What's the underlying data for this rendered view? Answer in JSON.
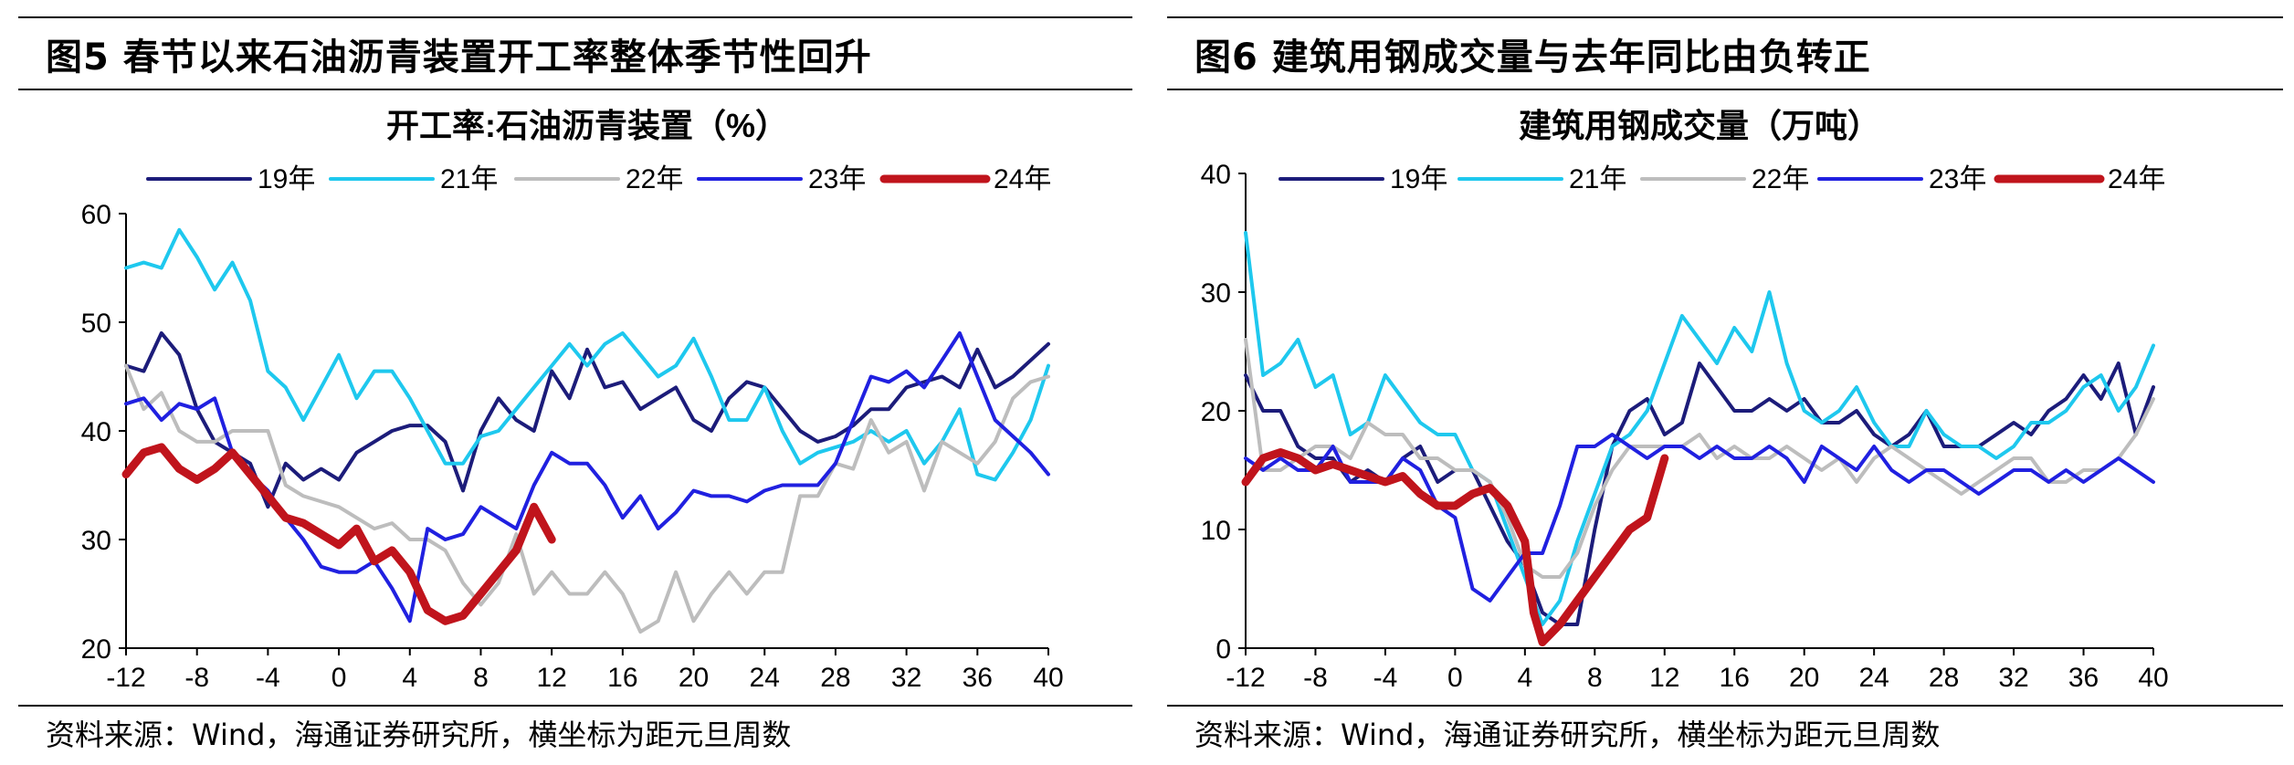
{
  "figures": [
    {
      "title": "图5 春节以来石油沥青装置开工率整体季节性回升",
      "source": "资料来源：Wind，海通证券研究所，横坐标为距元旦周数"
    },
    {
      "title": "图6 建筑用钢成交量与去年同比由负转正",
      "source": "资料来源：Wind，海通证券研究所，横坐标为距元旦周数"
    }
  ],
  "chart_data": [
    {
      "type": "line",
      "title": "开工率:石油沥青装置（%）",
      "xlabel": "",
      "ylabel": "",
      "xlim": [
        -12,
        40
      ],
      "ylim": [
        20,
        60
      ],
      "xticks": [
        -12,
        -8,
        -4,
        0,
        4,
        8,
        12,
        16,
        20,
        24,
        28,
        32,
        36,
        40
      ],
      "yticks": [
        20,
        30,
        40,
        50,
        60
      ],
      "legend_position": "top",
      "series": [
        {
          "name": "19年",
          "color": "#1c1c7a",
          "width": 4,
          "x": [
            -12,
            -11,
            -10,
            -9,
            -8,
            -7,
            -6,
            -5,
            -4,
            -3,
            -2,
            -1,
            0,
            1,
            2,
            3,
            4,
            5,
            6,
            7,
            8,
            9,
            10,
            11,
            12,
            13,
            14,
            15,
            16,
            17,
            18,
            19,
            20,
            21,
            22,
            23,
            24,
            25,
            26,
            27,
            28,
            29,
            30,
            31,
            32,
            33,
            34,
            35,
            36,
            37,
            38,
            39,
            40
          ],
          "y": [
            46,
            45.5,
            49,
            47,
            42,
            39,
            38,
            37,
            33,
            37,
            35.5,
            36.5,
            35.5,
            38,
            39,
            40,
            40.5,
            40.5,
            39,
            34.5,
            40,
            43,
            41,
            40,
            45.5,
            43,
            47.5,
            44,
            44.5,
            42,
            43,
            44,
            41,
            40,
            43,
            44.5,
            44,
            42,
            40,
            39,
            39.5,
            40.5,
            42,
            42,
            44,
            44.5,
            45,
            44,
            47.5,
            44,
            45,
            46.5,
            48
          ]
        },
        {
          "name": "21年",
          "color": "#1ec8ee",
          "width": 4,
          "x": [
            -12,
            -11,
            -10,
            -9,
            -8,
            -7,
            -6,
            -5,
            -4,
            -3,
            -2,
            -1,
            0,
            1,
            2,
            3,
            4,
            5,
            6,
            7,
            8,
            9,
            10,
            11,
            12,
            13,
            14,
            15,
            16,
            17,
            18,
            19,
            20,
            21,
            22,
            23,
            24,
            25,
            26,
            27,
            28,
            29,
            30,
            31,
            32,
            33,
            34,
            35,
            36,
            37,
            38,
            39,
            40
          ],
          "y": [
            55,
            55.5,
            55,
            58.5,
            56,
            53,
            55.5,
            52,
            45.5,
            44,
            41,
            44,
            47,
            43,
            45.5,
            45.5,
            43,
            40,
            37,
            37,
            39.5,
            40,
            42,
            44,
            46,
            48,
            46,
            48,
            49,
            47,
            45,
            46,
            48.5,
            45,
            41,
            41,
            44,
            40,
            37,
            38,
            38.5,
            39,
            40,
            39,
            40,
            37,
            39,
            42,
            36,
            35.5,
            38,
            41,
            46
          ]
        },
        {
          "name": "22年",
          "color": "#bdbdbd",
          "width": 4,
          "x": [
            -12,
            -11,
            -10,
            -9,
            -8,
            -7,
            -6,
            -5,
            -4,
            -3,
            -2,
            -1,
            0,
            1,
            2,
            3,
            4,
            5,
            6,
            7,
            8,
            9,
            10,
            11,
            12,
            13,
            14,
            15,
            16,
            17,
            18,
            19,
            20,
            21,
            22,
            23,
            24,
            25,
            26,
            27,
            28,
            29,
            30,
            31,
            32,
            33,
            34,
            35,
            36,
            37,
            38,
            39,
            40
          ],
          "y": [
            46,
            42,
            43.5,
            40,
            39,
            39,
            40,
            40,
            40,
            35,
            34,
            33.5,
            33,
            32,
            31,
            31.5,
            30,
            30,
            29,
            26,
            24,
            26,
            30.5,
            25,
            27,
            25,
            25,
            27,
            25,
            21.5,
            22.5,
            27,
            22.5,
            25,
            27,
            25,
            27,
            27,
            34,
            34,
            37,
            36.5,
            41,
            38,
            39,
            34.5,
            39,
            38,
            37,
            39,
            43,
            44.5,
            45
          ]
        },
        {
          "name": "23年",
          "color": "#2020e0",
          "width": 4,
          "x": [
            -12,
            -11,
            -10,
            -9,
            -8,
            -7,
            -6,
            -5,
            -4,
            -3,
            -2,
            -1,
            0,
            1,
            2,
            3,
            4,
            5,
            6,
            7,
            8,
            9,
            10,
            11,
            12,
            13,
            14,
            15,
            16,
            17,
            18,
            19,
            20,
            21,
            22,
            23,
            24,
            25,
            26,
            27,
            28,
            29,
            30,
            31,
            32,
            33,
            34,
            35,
            36,
            37,
            38,
            39,
            40
          ],
          "y": [
            42.5,
            43,
            41,
            42.5,
            42,
            43,
            38,
            36,
            34.5,
            32,
            30,
            27.5,
            27,
            27,
            28,
            25.5,
            22.5,
            31,
            30,
            30.5,
            33,
            32,
            31,
            35,
            38,
            37,
            37,
            35,
            32,
            34,
            31,
            32.5,
            34.5,
            34,
            34,
            33.5,
            34.5,
            35,
            35,
            35,
            37,
            41,
            45,
            44.5,
            45.5,
            44,
            46.5,
            49,
            45,
            41,
            39.5,
            38,
            36
          ]
        },
        {
          "name": "24年",
          "color": "#c0141c",
          "width": 9,
          "x": [
            -12,
            -11,
            -10,
            -9,
            -8,
            -7,
            -6,
            -5,
            -4,
            -3,
            -2,
            -1,
            0,
            1,
            2,
            3,
            4,
            5,
            6,
            7,
            8,
            9,
            10,
            11,
            12
          ],
          "y": [
            36,
            38,
            38.5,
            36.5,
            35.5,
            36.5,
            38,
            36,
            34,
            32,
            31.5,
            30.5,
            29.5,
            31,
            28,
            29,
            27,
            23.5,
            22.5,
            23,
            25,
            27,
            29,
            33,
            30
          ]
        }
      ]
    },
    {
      "type": "line",
      "title": "建筑用钢成交量（万吨）",
      "xlabel": "",
      "ylabel": "",
      "xlim": [
        -12,
        40
      ],
      "ylim": [
        0,
        40
      ],
      "xticks": [
        -12,
        -8,
        -4,
        0,
        4,
        8,
        12,
        16,
        20,
        24,
        28,
        32,
        36,
        40
      ],
      "yticks": [
        0,
        10,
        20,
        30,
        40
      ],
      "legend_position": "top",
      "series": [
        {
          "name": "19年",
          "color": "#1c1c7a",
          "width": 4,
          "x": [
            -12,
            -11,
            -10,
            -9,
            -8,
            -7,
            -6,
            -5,
            -4,
            -3,
            -2,
            -1,
            0,
            1,
            2,
            3,
            4,
            5,
            6,
            7,
            8,
            9,
            10,
            11,
            12,
            13,
            14,
            15,
            16,
            17,
            18,
            19,
            20,
            21,
            22,
            23,
            24,
            25,
            26,
            27,
            28,
            29,
            30,
            31,
            32,
            33,
            34,
            35,
            36,
            37,
            38,
            39,
            40
          ],
          "y": [
            23,
            20,
            20,
            17,
            16,
            16,
            14,
            15,
            14,
            16,
            17,
            14,
            15,
            15,
            12,
            9,
            7,
            3,
            2,
            2,
            10,
            17,
            20,
            21,
            18,
            19,
            24,
            22,
            20,
            20,
            21,
            20,
            21,
            19,
            19,
            20,
            18,
            17,
            18,
            20,
            17,
            17,
            17,
            18,
            19,
            18,
            20,
            21,
            23,
            21,
            24,
            18,
            22
          ]
        },
        {
          "name": "21年",
          "color": "#1ec8ee",
          "width": 4,
          "x": [
            -12,
            -11,
            -10,
            -9,
            -8,
            -7,
            -6,
            -5,
            -4,
            -3,
            -2,
            -1,
            0,
            1,
            2,
            3,
            4,
            5,
            6,
            7,
            8,
            9,
            10,
            11,
            12,
            13,
            14,
            15,
            16,
            17,
            18,
            19,
            20,
            21,
            22,
            23,
            24,
            25,
            26,
            27,
            28,
            29,
            30,
            31,
            32,
            33,
            34,
            35,
            36,
            37,
            38,
            39,
            40
          ],
          "y": [
            35,
            23,
            24,
            26,
            22,
            23,
            18,
            19,
            23,
            21,
            19,
            18,
            18,
            15,
            14,
            10,
            6,
            2,
            4,
            9,
            13,
            17,
            18,
            20,
            24,
            28,
            26,
            24,
            27,
            25,
            30,
            24,
            20,
            19,
            20,
            22,
            19,
            17,
            17,
            20,
            18,
            17,
            17,
            16,
            17,
            19,
            19,
            20,
            22,
            23,
            20,
            22,
            25.5
          ]
        },
        {
          "name": "22年",
          "color": "#bdbdbd",
          "width": 4,
          "x": [
            -12,
            -11,
            -10,
            -9,
            -8,
            -7,
            -6,
            -5,
            -4,
            -3,
            -2,
            -1,
            0,
            1,
            2,
            3,
            4,
            5,
            6,
            7,
            8,
            9,
            10,
            11,
            12,
            13,
            14,
            15,
            16,
            17,
            18,
            19,
            20,
            21,
            22,
            23,
            24,
            25,
            26,
            27,
            28,
            29,
            30,
            31,
            32,
            33,
            34,
            35,
            36,
            37,
            38,
            39,
            40
          ],
          "y": [
            26,
            15,
            15,
            16,
            17,
            17,
            16,
            19,
            18,
            18,
            16,
            16,
            15,
            15,
            14,
            11,
            7,
            6,
            6,
            8,
            12,
            15,
            17,
            17,
            17,
            17,
            18,
            16,
            17,
            16,
            16,
            17,
            16,
            15,
            16,
            14,
            16,
            17,
            16,
            15,
            14,
            13,
            14,
            15,
            16,
            16,
            14,
            14,
            15,
            15,
            16,
            18,
            21
          ]
        },
        {
          "name": "23年",
          "color": "#2020e0",
          "width": 4,
          "x": [
            -12,
            -11,
            -10,
            -9,
            -8,
            -7,
            -6,
            -5,
            -4,
            -3,
            -2,
            -1,
            0,
            1,
            2,
            3,
            4,
            5,
            6,
            7,
            8,
            9,
            10,
            11,
            12,
            13,
            14,
            15,
            16,
            17,
            18,
            19,
            20,
            21,
            22,
            23,
            24,
            25,
            26,
            27,
            28,
            29,
            30,
            31,
            32,
            33,
            34,
            35,
            36,
            37,
            38,
            39,
            40
          ],
          "y": [
            16,
            15,
            16,
            15,
            15,
            17,
            14,
            14,
            14,
            16,
            15,
            12,
            11,
            5,
            4,
            6,
            8,
            8,
            12,
            17,
            17,
            18,
            17,
            16,
            17,
            17,
            16,
            17,
            16,
            16,
            17,
            16,
            14,
            17,
            16,
            15,
            17,
            15,
            14,
            15,
            15,
            14,
            13,
            14,
            15,
            15,
            14,
            15,
            14,
            15,
            16,
            15,
            14
          ]
        },
        {
          "name": "24年",
          "color": "#c0141c",
          "width": 9,
          "x": [
            -12,
            -11,
            -10,
            -9,
            -8,
            -7,
            -6,
            -5,
            -4,
            -3,
            -2,
            -1,
            0,
            1,
            2,
            3,
            4,
            4.5,
            5,
            6,
            7,
            8,
            9,
            10,
            11,
            12
          ],
          "y": [
            14,
            16,
            16.5,
            16,
            15,
            15.5,
            15,
            14.5,
            14,
            14.5,
            13,
            12,
            12,
            13,
            13.5,
            12,
            9,
            3,
            0.5,
            2,
            4,
            6,
            8,
            10,
            11,
            16
          ]
        }
      ]
    }
  ]
}
